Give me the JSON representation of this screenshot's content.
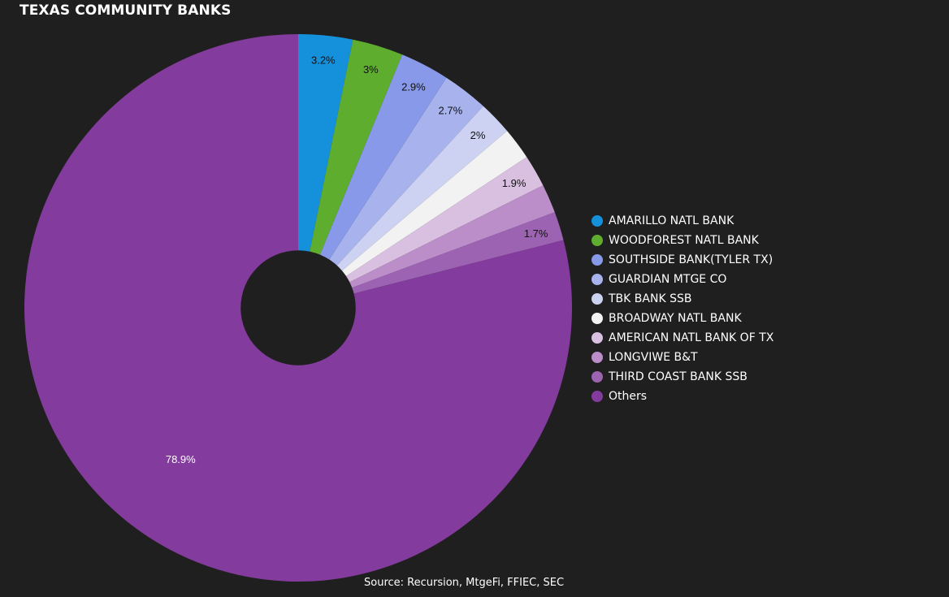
{
  "title": "TEXAS COMMUNITY BANKS",
  "source": "Source: Recursion, MtgeFi, FFIEC, SEC",
  "background": "#1f1f1f",
  "hole_color": "#1f1f1f",
  "chart_data": {
    "type": "pie",
    "title": "TEXAS COMMUNITY BANKS",
    "start_angle_deg": 0,
    "direction": "clockwise",
    "hole_fraction": 0.21,
    "legend_position": "right",
    "slices": [
      {
        "name": "AMARILLO NATL BANK",
        "value": 3.2,
        "label": "3.2%",
        "color": "#1591dc",
        "label_color": "#111111"
      },
      {
        "name": "WOODFOREST NATL BANK",
        "value": 3.0,
        "label": "3%",
        "color": "#5ead2e",
        "label_color": "#111111"
      },
      {
        "name": "SOUTHSIDE BANK(TYLER TX)",
        "value": 2.9,
        "label": "2.9%",
        "color": "#8799e8",
        "label_color": "#111111"
      },
      {
        "name": "GUARDIAN MTGE CO",
        "value": 2.7,
        "label": "2.7%",
        "color": "#a8b3ee",
        "label_color": "#111111"
      },
      {
        "name": "TBK BANK SSB",
        "value": 2.0,
        "label": "2%",
        "color": "#cdd2f2",
        "label_color": "#111111"
      },
      {
        "name": "BROADWAY NATL BANK",
        "value": 1.9,
        "label": "",
        "color": "#f2f2f2",
        "label_color": "#111111"
      },
      {
        "name": "AMERICAN NATL BANK OF TX",
        "value": 1.9,
        "label": "1.9%",
        "color": "#d9bfe0",
        "label_color": "#111111"
      },
      {
        "name": "LONGVIWE B&T",
        "value": 1.7,
        "label": "",
        "color": "#bb8ec9",
        "label_color": "#111111"
      },
      {
        "name": "THIRD COAST BANK SSB",
        "value": 1.7,
        "label": "1.7%",
        "color": "#9d63b3",
        "label_color": "#111111"
      },
      {
        "name": "Others",
        "value": 78.9,
        "label": "78.9%",
        "color": "#833b9d",
        "label_color": "#ffffff"
      }
    ]
  }
}
